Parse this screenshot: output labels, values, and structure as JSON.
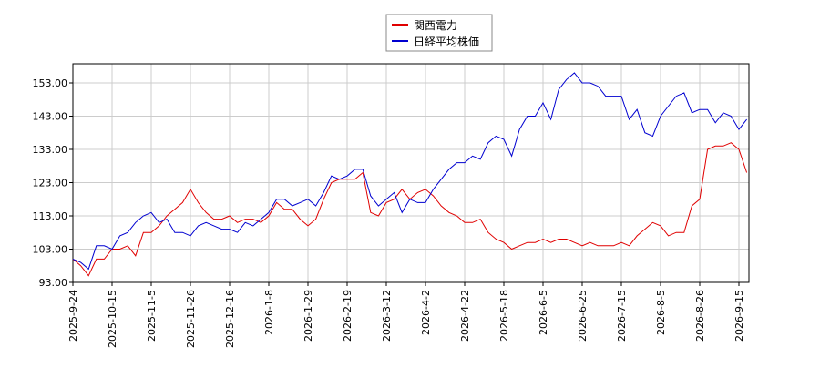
{
  "chart_data": {
    "type": "line",
    "categories": [
      "2025-9-24",
      null,
      null,
      null,
      null,
      "2025-10-15",
      null,
      null,
      null,
      null,
      "2025-11-5",
      null,
      null,
      null,
      null,
      "2025-11-26",
      null,
      null,
      null,
      null,
      "2025-12-16",
      null,
      null,
      null,
      null,
      "2026-1-8",
      null,
      null,
      null,
      null,
      "2026-1-29",
      null,
      null,
      null,
      null,
      "2026-2-19",
      null,
      null,
      null,
      null,
      "2026-3-12",
      null,
      null,
      null,
      null,
      "2026-4-2",
      null,
      null,
      null,
      null,
      "2026-4-22",
      null,
      null,
      null,
      null,
      "2026-5-18",
      null,
      null,
      null,
      null,
      "2026-6-5",
      null,
      null,
      null,
      null,
      "2026-6-25",
      null,
      null,
      null,
      null,
      "2026-7-15",
      null,
      null,
      null,
      null,
      "2026-8-5",
      null,
      null,
      null,
      null,
      "2026-8-26",
      null,
      null,
      null,
      null,
      "2026-9-15",
      null
    ],
    "series": [
      {
        "name": "関西電力",
        "color": "#e00000",
        "values": [
          100,
          98,
          95,
          100,
          100,
          103,
          103,
          104,
          101,
          108,
          108,
          110,
          113,
          115,
          117,
          121,
          117,
          114,
          112,
          112,
          113,
          111,
          112,
          112,
          111,
          113,
          117,
          115,
          115,
          112,
          110,
          112,
          118,
          123,
          124,
          124,
          124,
          126,
          114,
          113,
          117,
          118,
          121,
          118,
          120,
          121,
          119,
          116,
          114,
          113,
          111,
          111,
          112,
          108,
          106,
          105,
          103,
          104,
          105,
          105,
          106,
          105,
          106,
          106,
          105,
          104,
          105,
          104,
          104,
          104,
          105,
          104,
          107,
          109,
          111,
          110,
          107,
          108,
          108,
          116,
          118,
          133,
          134,
          134,
          135,
          133,
          126
        ]
      },
      {
        "name": "日経平均株価",
        "color": "#0000d0",
        "values": [
          100,
          99,
          97,
          104,
          104,
          103,
          107,
          108,
          111,
          113,
          114,
          111,
          112,
          108,
          108,
          107,
          110,
          111,
          110,
          109,
          109,
          108,
          111,
          110,
          112,
          114,
          118,
          118,
          116,
          117,
          118,
          116,
          120,
          125,
          124,
          125,
          127,
          127,
          119,
          116,
          118,
          120,
          114,
          118,
          117,
          117,
          121,
          124,
          127,
          129,
          129,
          131,
          130,
          135,
          137,
          136,
          131,
          139,
          143,
          143,
          147,
          142,
          151,
          154,
          156,
          153,
          153,
          152,
          149,
          149,
          149,
          142,
          145,
          138,
          137,
          143,
          146,
          149,
          150,
          144,
          145,
          145,
          141,
          144,
          143,
          139,
          142
        ]
      }
    ],
    "ylim": [
      93,
      158.75
    ],
    "yticks": [
      {
        "value": 93,
        "label": "93.00"
      },
      {
        "value": 103,
        "label": "103.00"
      },
      {
        "value": 113,
        "label": "113.00"
      },
      {
        "value": 123,
        "label": "123.00"
      },
      {
        "value": 133,
        "label": "133.00"
      },
      {
        "value": 143,
        "label": "143.00"
      },
      {
        "value": 153,
        "label": "153.00"
      }
    ],
    "grid": true,
    "legend": "top"
  }
}
